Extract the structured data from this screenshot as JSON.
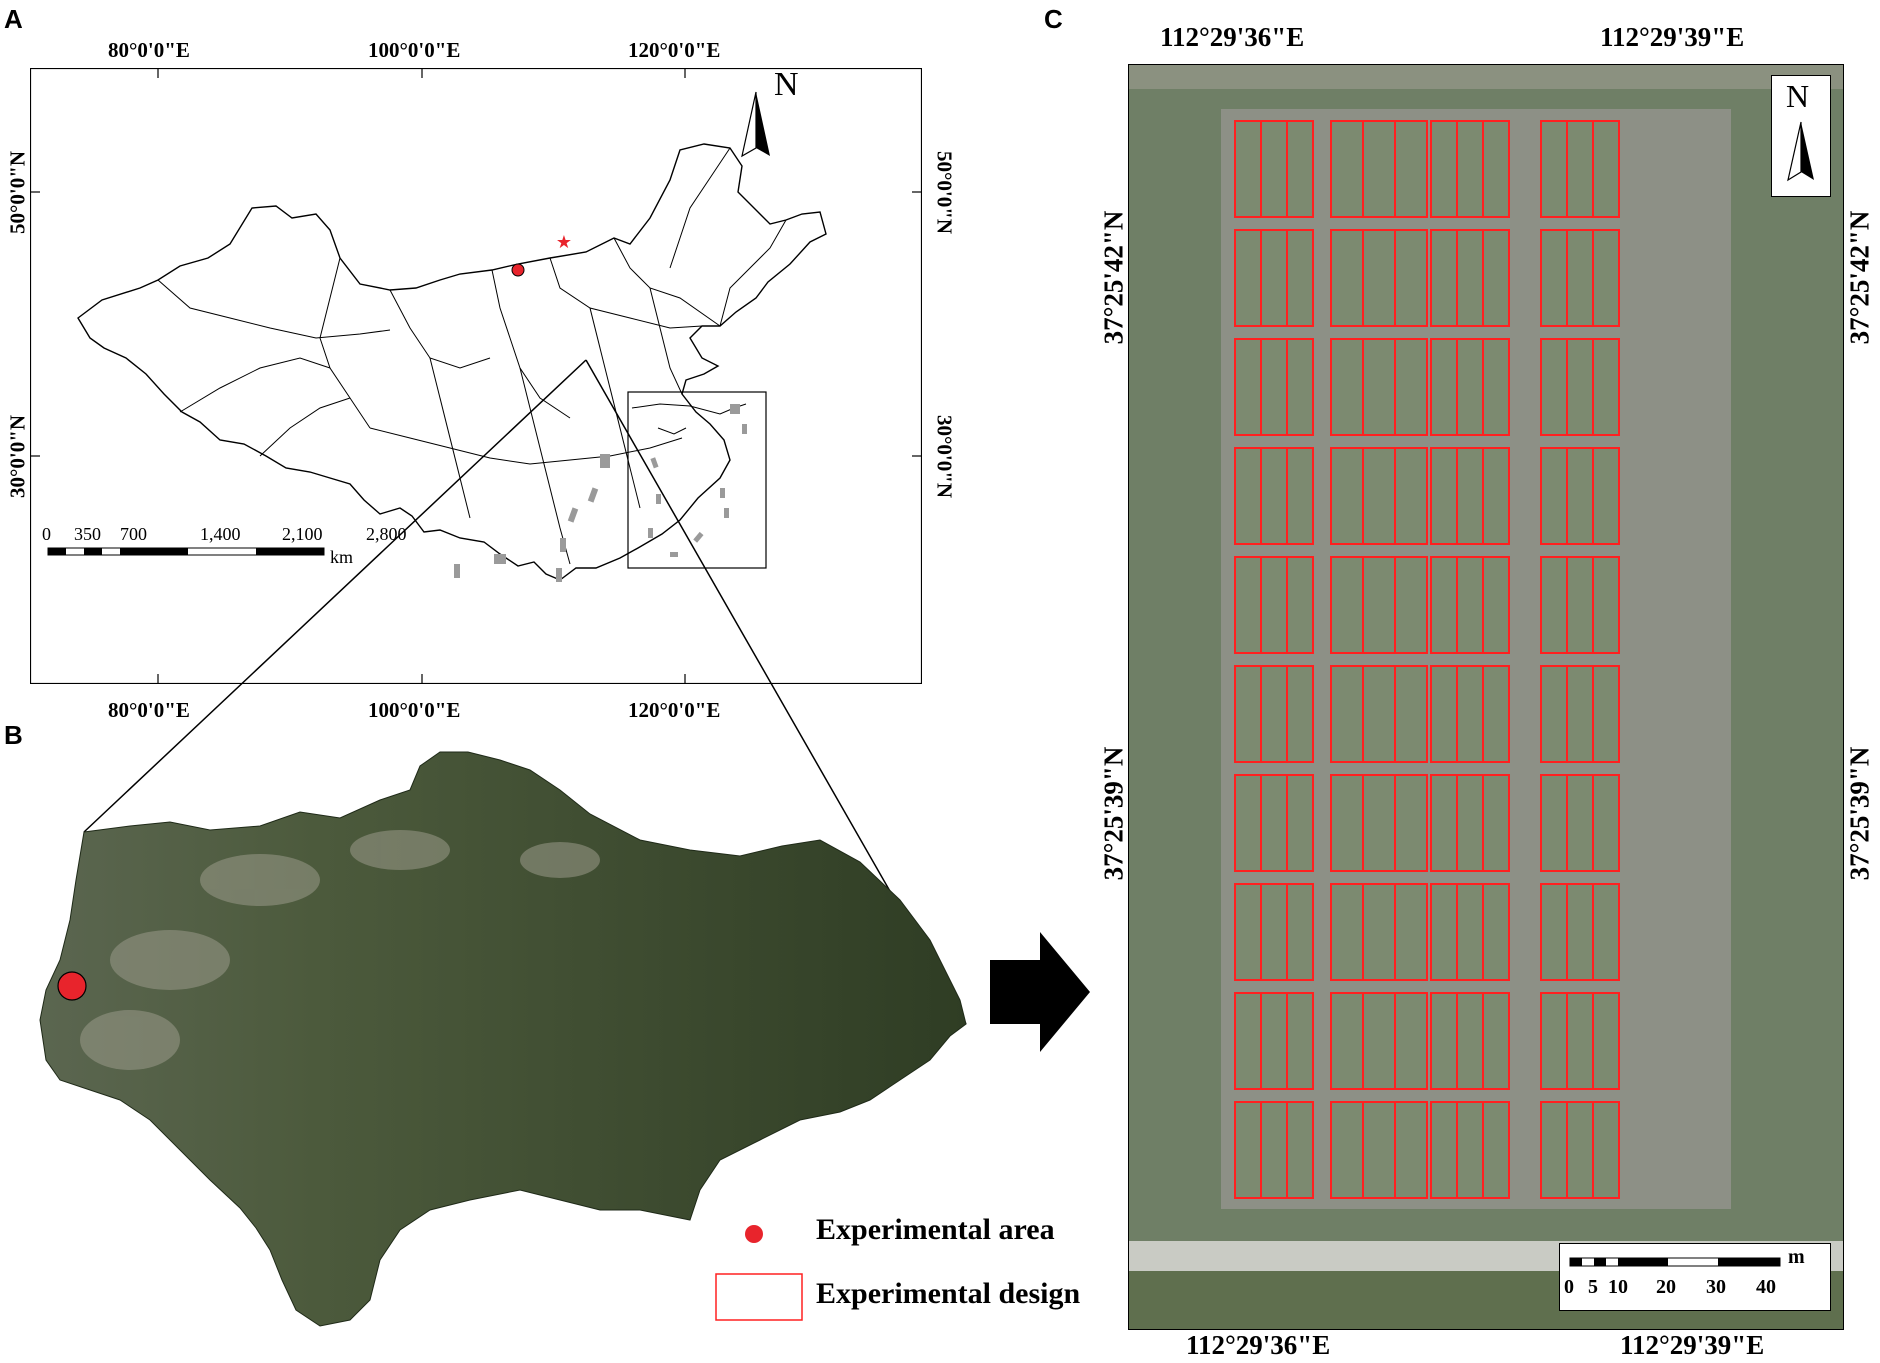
{
  "panels": {
    "a": {
      "letter": "A"
    },
    "b": {
      "letter": "B"
    },
    "c": {
      "letter": "C"
    }
  },
  "map_a": {
    "lon_top": [
      "80°0'0\"E",
      "100°0'0\"E",
      "120°0'0\"E"
    ],
    "lon_bottom": [
      "80°0'0\"E",
      "100°0'0\"E",
      "120°0'0\"E"
    ],
    "lat_left": [
      "50°0'0\"N",
      "30°0'0\"N"
    ],
    "lat_right": [
      "50°0'0\"N",
      "30°0'0\"N"
    ],
    "north": "N",
    "scale_ticks": [
      "0",
      "350",
      "700",
      "1,400",
      "2,100",
      "2,800"
    ],
    "scale_unit": "km"
  },
  "map_c": {
    "lon_top": [
      "112°29'36\"E",
      "112°29'39\"E"
    ],
    "lon_bottom": [
      "112°29'36\"E",
      "112°29'39\"E"
    ],
    "lat_left": [
      "37°25'42\"N",
      "37°25'39\"N"
    ],
    "lat_right": [
      "37°25'42\"N",
      "37°25'39\"N"
    ],
    "north": "N",
    "scale_ticks": [
      "0",
      "5",
      "10",
      "20",
      "30",
      "40"
    ],
    "scale_unit": "m"
  },
  "legend": {
    "area": "Experimental area",
    "design": "Experimental design"
  },
  "colors": {
    "marker": "#e8242c",
    "plot_outline": "#ff2020",
    "terrain": "#3a4a2e",
    "field": "#6f7f66"
  }
}
